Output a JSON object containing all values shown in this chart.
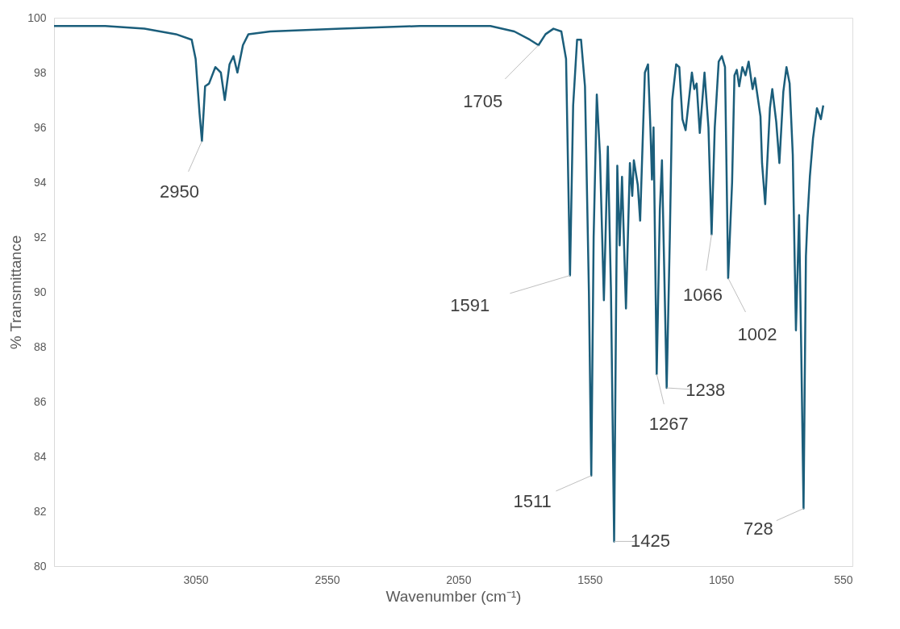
{
  "chart_data": {
    "type": "line",
    "xlabel": "Wavenumber (cm⁻¹)",
    "ylabel": "% Transmittance",
    "x": [
      3589,
      3394,
      3245,
      3125,
      3065,
      3050,
      3035,
      3026,
      3014,
      2999,
      2975,
      2954,
      2939,
      2921,
      2906,
      2891,
      2870,
      2849,
      2766,
      2496,
      2197,
      1928,
      1837,
      1778,
      1745,
      1718,
      1688,
      1658,
      1640,
      1625,
      1613,
      1598,
      1583,
      1568,
      1553,
      1544,
      1535,
      1523,
      1511,
      1496,
      1481,
      1469,
      1457,
      1445,
      1436,
      1427,
      1412,
      1397,
      1388,
      1382,
      1367,
      1358,
      1340,
      1328,
      1319,
      1313,
      1307,
      1295,
      1283,
      1275,
      1257,
      1245,
      1236,
      1221,
      1209,
      1197,
      1185,
      1161,
      1152,
      1143,
      1131,
      1113,
      1098,
      1086,
      1074,
      1059,
      1047,
      1035,
      1023,
      1008,
      999,
      990,
      981,
      969,
      957,
      945,
      930,
      921,
      900,
      894,
      882,
      864,
      855,
      840,
      828,
      813,
      801,
      789,
      777,
      765,
      753,
      745,
      736,
      727,
      721,
      712,
      700,
      685,
      670,
      661
    ],
    "series": [
      {
        "color": "#1b5e7b",
        "values": [
          99.7,
          99.7,
          99.6,
          99.4,
          99.2,
          98.5,
          96.5,
          95.5,
          97.5,
          97.6,
          98.2,
          98.0,
          97.0,
          98.3,
          98.6,
          98.0,
          99.0,
          99.4,
          99.5,
          99.6,
          99.7,
          99.7,
          99.5,
          99.2,
          99.0,
          99.4,
          99.6,
          99.5,
          98.5,
          90.6,
          96.8,
          99.2,
          99.2,
          97.5,
          90.0,
          83.3,
          92.0,
          97.2,
          95.0,
          89.7,
          95.3,
          90.0,
          80.9,
          94.6,
          91.7,
          94.2,
          89.4,
          94.7,
          93.5,
          94.8,
          93.9,
          92.6,
          98.0,
          98.3,
          96.0,
          94.1,
          96.0,
          87.0,
          93.0,
          94.8,
          86.5,
          92.0,
          97.0,
          98.3,
          98.2,
          96.3,
          95.9,
          98.0,
          97.4,
          97.6,
          95.8,
          98.0,
          96.0,
          92.1,
          96.0,
          98.4,
          98.6,
          98.2,
          90.5,
          94.0,
          97.9,
          98.1,
          97.5,
          98.2,
          97.9,
          98.4,
          97.4,
          97.8,
          96.4,
          94.7,
          93.2,
          96.7,
          97.4,
          96.2,
          94.7,
          97.3,
          98.2,
          97.6,
          95.0,
          88.6,
          92.8,
          88.0,
          82.1,
          91.3,
          92.7,
          94.2,
          95.6,
          96.7,
          96.3,
          96.8
        ]
      }
    ],
    "xlim": [
      3589,
      550
    ],
    "xticks": [
      3050,
      2550,
      2050,
      1550,
      1050,
      550
    ],
    "ylim": [
      80,
      100
    ],
    "yticks": [
      80,
      82,
      84,
      86,
      88,
      90,
      92,
      94,
      96,
      98,
      100
    ],
    "grid": false,
    "marker": "none",
    "line_style": "solid",
    "annotations": [
      {
        "text": "2950",
        "x": 3026,
        "y": 95.5
      },
      {
        "text": "1705",
        "x": 1745,
        "y": 99.0
      },
      {
        "text": "1591",
        "x": 1625,
        "y": 90.6
      },
      {
        "text": "1511",
        "x": 1544,
        "y": 83.3
      },
      {
        "text": "1425",
        "x": 1457,
        "y": 80.9
      },
      {
        "text": "1267",
        "x": 1295,
        "y": 87.0
      },
      {
        "text": "1238",
        "x": 1257,
        "y": 86.5
      },
      {
        "text": "1066",
        "x": 1086,
        "y": 92.1
      },
      {
        "text": "1002",
        "x": 1023,
        "y": 90.5
      },
      {
        "text": "728",
        "x": 736,
        "y": 82.1
      }
    ]
  }
}
